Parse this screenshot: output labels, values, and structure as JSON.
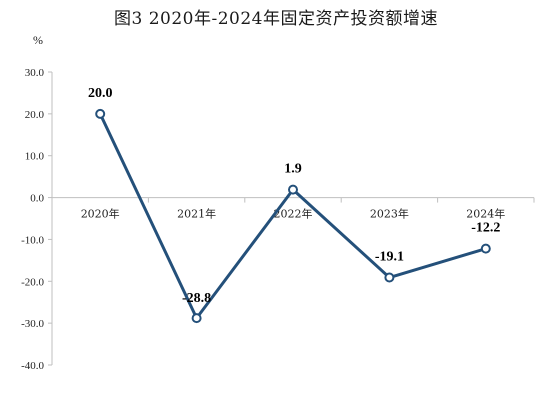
{
  "chart_data": {
    "type": "line",
    "title": "图3  2020年-2024年固定资产投资额增速",
    "ylabel": "%",
    "xlabel": "",
    "categories": [
      "2020年",
      "2021年",
      "2022年",
      "2023年",
      "2024年"
    ],
    "series": [
      {
        "values": [
          20.0,
          -28.8,
          1.9,
          -19.1,
          -12.2
        ]
      }
    ],
    "data_labels": [
      "20.0",
      "-28.8",
      "1.9",
      "-19.1",
      "-12.2"
    ],
    "ylim": [
      -40,
      30
    ],
    "yticks": [
      30,
      20,
      10,
      0,
      -10,
      -20,
      -30,
      -40
    ],
    "ytick_labels": [
      "30.0",
      "20.0",
      "10.0",
      "0.0",
      "-10.0",
      "-20.0",
      "-30.0",
      "-40.0"
    ],
    "grid": false,
    "colors": {
      "line": "#24507a",
      "marker_fill": "#ffffff",
      "axis": "#bfbfbf"
    }
  }
}
